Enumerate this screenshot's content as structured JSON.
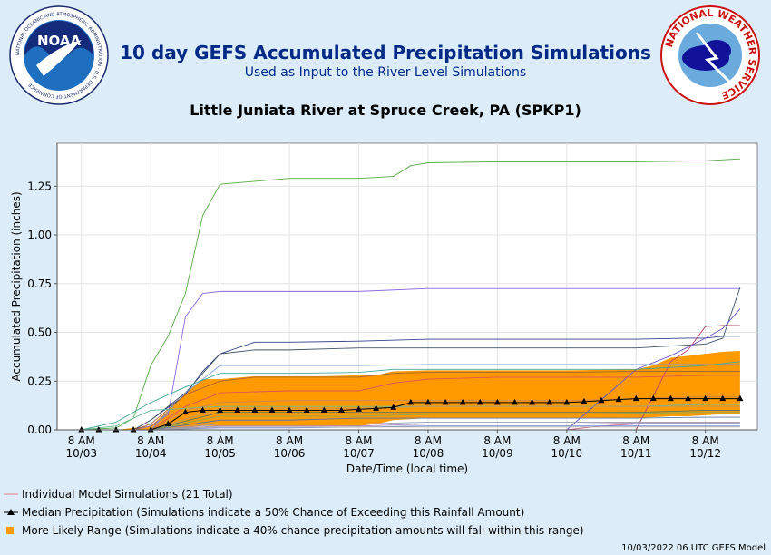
{
  "header": {
    "title": "10 day GEFS Accumulated Precipitation Simulations",
    "subtitle": "Used as Input to the River Level Simulations",
    "station": "Little Juniata River at Spruce Creek, PA (SPKP1)",
    "noaa_logo_text": "NOAA",
    "noaa_ring_text": "NATIONAL OCEANIC AND ATMOSPHERIC ADMINISTRATION · U.S. DEPARTMENT OF COMMERCE",
    "nws_ring_text": "NATIONAL WEATHER SERVICE"
  },
  "colors": {
    "background": "#dcecf8",
    "title": "#002a86",
    "range_fill": "#ff9900",
    "median": "#000000",
    "individual": "#e38080"
  },
  "chart_data": {
    "type": "line",
    "xlabel": "Date/Time (local time)",
    "ylabel": "Accumulated Precipitation (inches)",
    "ylim": [
      0,
      1.47
    ],
    "y_ticks": [
      "0.00",
      "0.25",
      "0.50",
      "0.75",
      "1.00",
      "1.25"
    ],
    "y_tick_values": [
      0,
      0.25,
      0.5,
      0.75,
      1.0,
      1.25
    ],
    "x_ticks": [
      {
        "time": "8 AM",
        "date": "10/03",
        "day": 0
      },
      {
        "time": "8 AM",
        "date": "10/04",
        "day": 1
      },
      {
        "time": "8 AM",
        "date": "10/05",
        "day": 2
      },
      {
        "time": "8 AM",
        "date": "10/06",
        "day": 3
      },
      {
        "time": "8 AM",
        "date": "10/07",
        "day": 4
      },
      {
        "time": "8 AM",
        "date": "10/08",
        "day": 5
      },
      {
        "time": "8 AM",
        "date": "10/09",
        "day": 6
      },
      {
        "time": "8 AM",
        "date": "10/10",
        "day": 7
      },
      {
        "time": "8 AM",
        "date": "10/11",
        "day": 8
      },
      {
        "time": "8 AM",
        "date": "10/12",
        "day": 9
      }
    ],
    "grid": true,
    "xlim_days": [
      -0.35,
      9.75
    ],
    "median": {
      "name": "Median Precipitation",
      "x": [
        0,
        0.25,
        0.5,
        0.75,
        1,
        1.25,
        1.5,
        1.75,
        2,
        2.25,
        2.5,
        2.75,
        3,
        3.25,
        3.5,
        3.75,
        4,
        4.25,
        4.5,
        4.75,
        5,
        5.25,
        5.5,
        5.75,
        6,
        6.25,
        6.5,
        6.75,
        7,
        7.25,
        7.5,
        7.75,
        8,
        8.25,
        8.5,
        8.75,
        9,
        9.25,
        9.5
      ],
      "values": [
        0,
        0,
        0,
        0,
        0,
        0.03,
        0.09,
        0.1,
        0.1,
        0.1,
        0.1,
        0.1,
        0.1,
        0.1,
        0.1,
        0.1,
        0.105,
        0.11,
        0.115,
        0.14,
        0.14,
        0.14,
        0.14,
        0.14,
        0.14,
        0.14,
        0.14,
        0.14,
        0.14,
        0.145,
        0.15,
        0.155,
        0.16,
        0.16,
        0.16,
        0.16,
        0.16,
        0.16,
        0.16
      ]
    },
    "range": {
      "name": "More Likely Range",
      "x": [
        0.5,
        1,
        1.25,
        1.5,
        1.75,
        2,
        2.5,
        3,
        3.5,
        4,
        4.25,
        4.5,
        5,
        6,
        7,
        8,
        8.25,
        8.5,
        8.75,
        9,
        9.25,
        9.5
      ],
      "upper": [
        0,
        0.02,
        0.1,
        0.19,
        0.26,
        0.26,
        0.275,
        0.275,
        0.275,
        0.28,
        0.28,
        0.3,
        0.305,
        0.305,
        0.305,
        0.31,
        0.33,
        0.37,
        0.38,
        0.39,
        0.4,
        0.405
      ],
      "lower": [
        0,
        0,
        0.005,
        0.01,
        0.02,
        0.02,
        0.02,
        0.02,
        0.02,
        0.02,
        0.03,
        0.05,
        0.06,
        0.06,
        0.06,
        0.06,
        0.065,
        0.07,
        0.07,
        0.075,
        0.08,
        0.08
      ]
    },
    "individual": [
      {
        "color": "#55aa44",
        "x": [
          0,
          0.5,
          0.75,
          1,
          1.25,
          1.5,
          1.75,
          2,
          3,
          4,
          4.5,
          4.75,
          5,
          6,
          7,
          8,
          9,
          9.5
        ],
        "values": [
          0,
          0.01,
          0.06,
          0.33,
          0.48,
          0.7,
          1.1,
          1.26,
          1.29,
          1.29,
          1.3,
          1.355,
          1.37,
          1.375,
          1.375,
          1.375,
          1.38,
          1.39
        ]
      },
      {
        "color": "#8866dd",
        "x": [
          0,
          0.75,
          1,
          1.25,
          1.5,
          1.75,
          2,
          3,
          4,
          5,
          6,
          7,
          8,
          9,
          9.5
        ],
        "values": [
          0,
          0,
          0.02,
          0.08,
          0.58,
          0.7,
          0.71,
          0.71,
          0.71,
          0.725,
          0.725,
          0.725,
          0.725,
          0.725,
          0.725
        ]
      },
      {
        "color": "#334488",
        "x": [
          0,
          0.75,
          1,
          1.5,
          1.75,
          2,
          2.5,
          3,
          4,
          5,
          6,
          7,
          8,
          8.75,
          9,
          9.25,
          9.5
        ],
        "values": [
          0,
          0,
          0.05,
          0.18,
          0.3,
          0.39,
          0.45,
          0.45,
          0.455,
          0.465,
          0.465,
          0.465,
          0.465,
          0.47,
          0.47,
          0.48,
          0.48
        ]
      },
      {
        "color": "#445566",
        "x": [
          0,
          0.75,
          1,
          1.5,
          2,
          2.5,
          3,
          4,
          5,
          6,
          7,
          8,
          8.5,
          9,
          9.25,
          9.5
        ],
        "values": [
          0,
          0,
          0.05,
          0.19,
          0.39,
          0.41,
          0.41,
          0.42,
          0.42,
          0.42,
          0.42,
          0.42,
          0.43,
          0.44,
          0.47,
          0.73
        ]
      },
      {
        "color": "#bb4466",
        "x": [
          0,
          1,
          2,
          4,
          5,
          6,
          7,
          8,
          8.5,
          8.75,
          9,
          9.25,
          9.5
        ],
        "values": [
          0,
          0,
          0,
          0,
          0,
          0,
          0,
          0,
          0.35,
          0.41,
          0.53,
          0.535,
          0.535
        ]
      },
      {
        "color": "#6655cc",
        "x": [
          0,
          1,
          2,
          4,
          5,
          6,
          7,
          8,
          8.5,
          9,
          9.25,
          9.5
        ],
        "values": [
          0,
          0,
          0,
          0,
          0,
          0,
          0,
          0.31,
          0.38,
          0.47,
          0.52,
          0.62
        ]
      },
      {
        "color": "#7799dd",
        "x": [
          0,
          1,
          1.5,
          2,
          2.5,
          3,
          4,
          5,
          6,
          7,
          8,
          9,
          9.5
        ],
        "values": [
          0,
          0,
          0.19,
          0.33,
          0.33,
          0.33,
          0.33,
          0.335,
          0.335,
          0.335,
          0.335,
          0.335,
          0.335
        ]
      },
      {
        "color": "#44aa99",
        "x": [
          0,
          0.5,
          1,
          1.5,
          2,
          3,
          4,
          4.5,
          5,
          6,
          7,
          8,
          9,
          9.5
        ],
        "values": [
          0,
          0.04,
          0.14,
          0.22,
          0.29,
          0.29,
          0.295,
          0.31,
          0.31,
          0.31,
          0.31,
          0.31,
          0.33,
          0.35
        ]
      },
      {
        "color": "#aa6633",
        "x": [
          0,
          0.75,
          1,
          1.5,
          2,
          2.5,
          3,
          4,
          4.5,
          5,
          6,
          7,
          8,
          9,
          9.5
        ],
        "values": [
          0,
          0,
          0.03,
          0.18,
          0.25,
          0.27,
          0.27,
          0.27,
          0.29,
          0.295,
          0.295,
          0.295,
          0.3,
          0.3,
          0.3
        ]
      },
      {
        "color": "#dd5555",
        "x": [
          0,
          1,
          1.5,
          2,
          3,
          4,
          4.5,
          5,
          6,
          7,
          8,
          9,
          9.5
        ],
        "values": [
          0,
          0,
          0.12,
          0.19,
          0.2,
          0.2,
          0.24,
          0.26,
          0.27,
          0.27,
          0.27,
          0.28,
          0.28
        ]
      },
      {
        "color": "#cc8855",
        "x": [
          0,
          1,
          1.5,
          2,
          3,
          4,
          5,
          6,
          7,
          8,
          9,
          9.5
        ],
        "values": [
          0,
          0,
          0.1,
          0.14,
          0.15,
          0.15,
          0.15,
          0.15,
          0.15,
          0.16,
          0.17,
          0.17
        ]
      },
      {
        "color": "#66bb99",
        "x": [
          0,
          0.5,
          1,
          1.5,
          2,
          3,
          4,
          5,
          6,
          7,
          8,
          9,
          9.5
        ],
        "values": [
          0,
          0.02,
          0.1,
          0.11,
          0.12,
          0.12,
          0.12,
          0.12,
          0.12,
          0.12,
          0.12,
          0.13,
          0.13
        ]
      },
      {
        "color": "#9999aa",
        "x": [
          0,
          1,
          2,
          3,
          4,
          5,
          6,
          7,
          8,
          9,
          9.5
        ],
        "values": [
          0,
          0,
          0.03,
          0.03,
          0.03,
          0.04,
          0.04,
          0.04,
          0.04,
          0.04,
          0.04
        ]
      },
      {
        "color": "#5577aa",
        "x": [
          0,
          1,
          2,
          3,
          4,
          5,
          6,
          7,
          8,
          9,
          9.5
        ],
        "values": [
          0,
          0,
          0.05,
          0.05,
          0.06,
          0.06,
          0.06,
          0.06,
          0.06,
          0.065,
          0.065
        ]
      },
      {
        "color": "#aa88bb",
        "x": [
          0,
          1,
          2,
          3,
          4,
          5,
          6,
          7,
          8,
          9,
          9.5
        ],
        "values": [
          0,
          0,
          0.02,
          0.02,
          0.02,
          0.03,
          0.03,
          0.03,
          0.035,
          0.035,
          0.035
        ]
      },
      {
        "color": "#88aa55",
        "x": [
          0,
          1,
          2,
          3,
          4,
          5,
          6,
          7,
          8,
          9,
          9.5
        ],
        "values": [
          0,
          0,
          0.07,
          0.07,
          0.07,
          0.08,
          0.08,
          0.08,
          0.085,
          0.09,
          0.09
        ]
      },
      {
        "color": "#cc6688",
        "x": [
          0,
          1,
          2,
          3,
          4,
          5,
          6,
          7,
          7.5,
          8,
          9,
          9.5
        ],
        "values": [
          0,
          0,
          0,
          0,
          0,
          0,
          0,
          0,
          0.02,
          0.03,
          0.03,
          0.03
        ]
      },
      {
        "color": "#557766",
        "x": [
          0,
          1,
          2,
          3,
          4,
          5,
          6,
          7,
          8,
          9,
          9.5
        ],
        "values": [
          0,
          0,
          0.09,
          0.09,
          0.09,
          0.09,
          0.09,
          0.09,
          0.09,
          0.1,
          0.1
        ]
      },
      {
        "color": "#7788cc",
        "x": [
          0,
          1,
          2,
          3,
          4,
          5,
          6,
          7,
          8,
          9,
          9.5
        ],
        "values": [
          0,
          0,
          0.01,
          0.01,
          0.015,
          0.02,
          0.02,
          0.02,
          0.02,
          0.02,
          0.02
        ]
      },
      {
        "color": "#bb9966",
        "x": [
          0,
          1,
          2,
          3,
          4,
          5,
          6,
          7,
          8,
          9,
          9.5
        ],
        "values": [
          0,
          0,
          0.11,
          0.11,
          0.11,
          0.12,
          0.12,
          0.12,
          0.12,
          0.12,
          0.12
        ]
      },
      {
        "color": "#aaaaaa",
        "x": [
          0,
          1,
          2,
          3,
          4,
          5,
          6,
          7,
          8,
          9,
          9.5
        ],
        "values": [
          0,
          0,
          0.015,
          0.015,
          0.015,
          0.015,
          0.015,
          0.015,
          0.015,
          0.015,
          0.015
        ]
      }
    ]
  },
  "legend": {
    "individual": "Individual Model Simulations (21 Total)",
    "median": "Median Precipitation (Simulations indicate a 50% Chance of Exceeding this Rainfall Amount)",
    "range": "More Likely Range (Simulations indicate a 40% chance precipitation amounts will fall within this range)"
  },
  "footer": "10/03/2022 06 UTC GEFS Model"
}
